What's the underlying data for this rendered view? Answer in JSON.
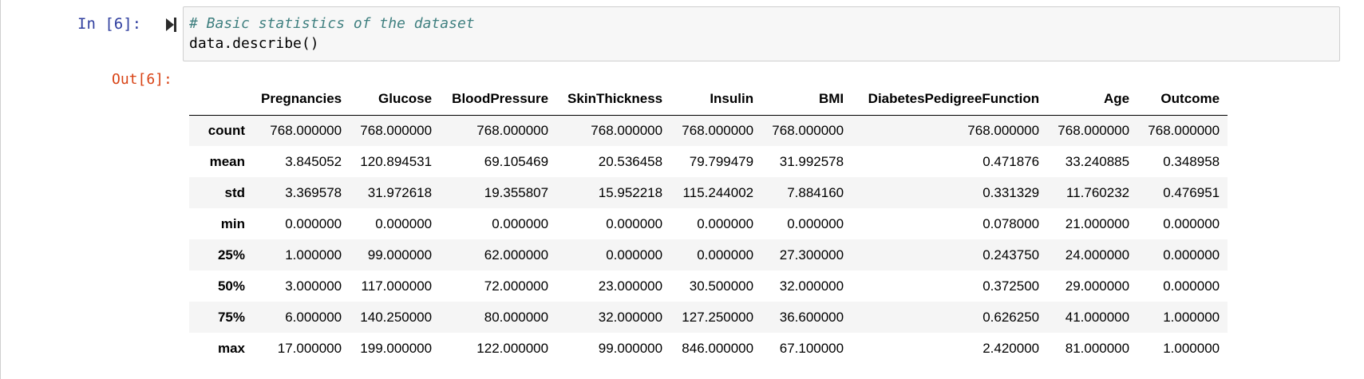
{
  "cell": {
    "in_prompt": "In [6]:",
    "out_prompt": "Out[6]:",
    "run_icon": "run-cell-icon",
    "code": {
      "comment": "# Basic statistics of the dataset",
      "call": "data.describe()"
    }
  },
  "colors": {
    "in_prompt": "#303f9f",
    "out_prompt": "#d84315",
    "comment": "#408080",
    "input_bg": "#f7f7f7",
    "striped_row": "#f5f5f5"
  },
  "table": {
    "columns": [
      "",
      "Pregnancies",
      "Glucose",
      "BloodPressure",
      "SkinThickness",
      "Insulin",
      "BMI",
      "DiabetesPedigreeFunction",
      "Age",
      "Outcome"
    ],
    "rows": [
      {
        "label": "count",
        "values": [
          "768.000000",
          "768.000000",
          "768.000000",
          "768.000000",
          "768.000000",
          "768.000000",
          "768.000000",
          "768.000000",
          "768.000000"
        ]
      },
      {
        "label": "mean",
        "values": [
          "3.845052",
          "120.894531",
          "69.105469",
          "20.536458",
          "79.799479",
          "31.992578",
          "0.471876",
          "33.240885",
          "0.348958"
        ]
      },
      {
        "label": "std",
        "values": [
          "3.369578",
          "31.972618",
          "19.355807",
          "15.952218",
          "115.244002",
          "7.884160",
          "0.331329",
          "11.760232",
          "0.476951"
        ]
      },
      {
        "label": "min",
        "values": [
          "0.000000",
          "0.000000",
          "0.000000",
          "0.000000",
          "0.000000",
          "0.000000",
          "0.078000",
          "21.000000",
          "0.000000"
        ]
      },
      {
        "label": "25%",
        "values": [
          "1.000000",
          "99.000000",
          "62.000000",
          "0.000000",
          "0.000000",
          "27.300000",
          "0.243750",
          "24.000000",
          "0.000000"
        ]
      },
      {
        "label": "50%",
        "values": [
          "3.000000",
          "117.000000",
          "72.000000",
          "23.000000",
          "30.500000",
          "32.000000",
          "0.372500",
          "29.000000",
          "0.000000"
        ]
      },
      {
        "label": "75%",
        "values": [
          "6.000000",
          "140.250000",
          "80.000000",
          "32.000000",
          "127.250000",
          "36.600000",
          "0.626250",
          "41.000000",
          "1.000000"
        ]
      },
      {
        "label": "max",
        "values": [
          "17.000000",
          "199.000000",
          "122.000000",
          "99.000000",
          "846.000000",
          "67.100000",
          "2.420000",
          "81.000000",
          "1.000000"
        ]
      }
    ]
  }
}
